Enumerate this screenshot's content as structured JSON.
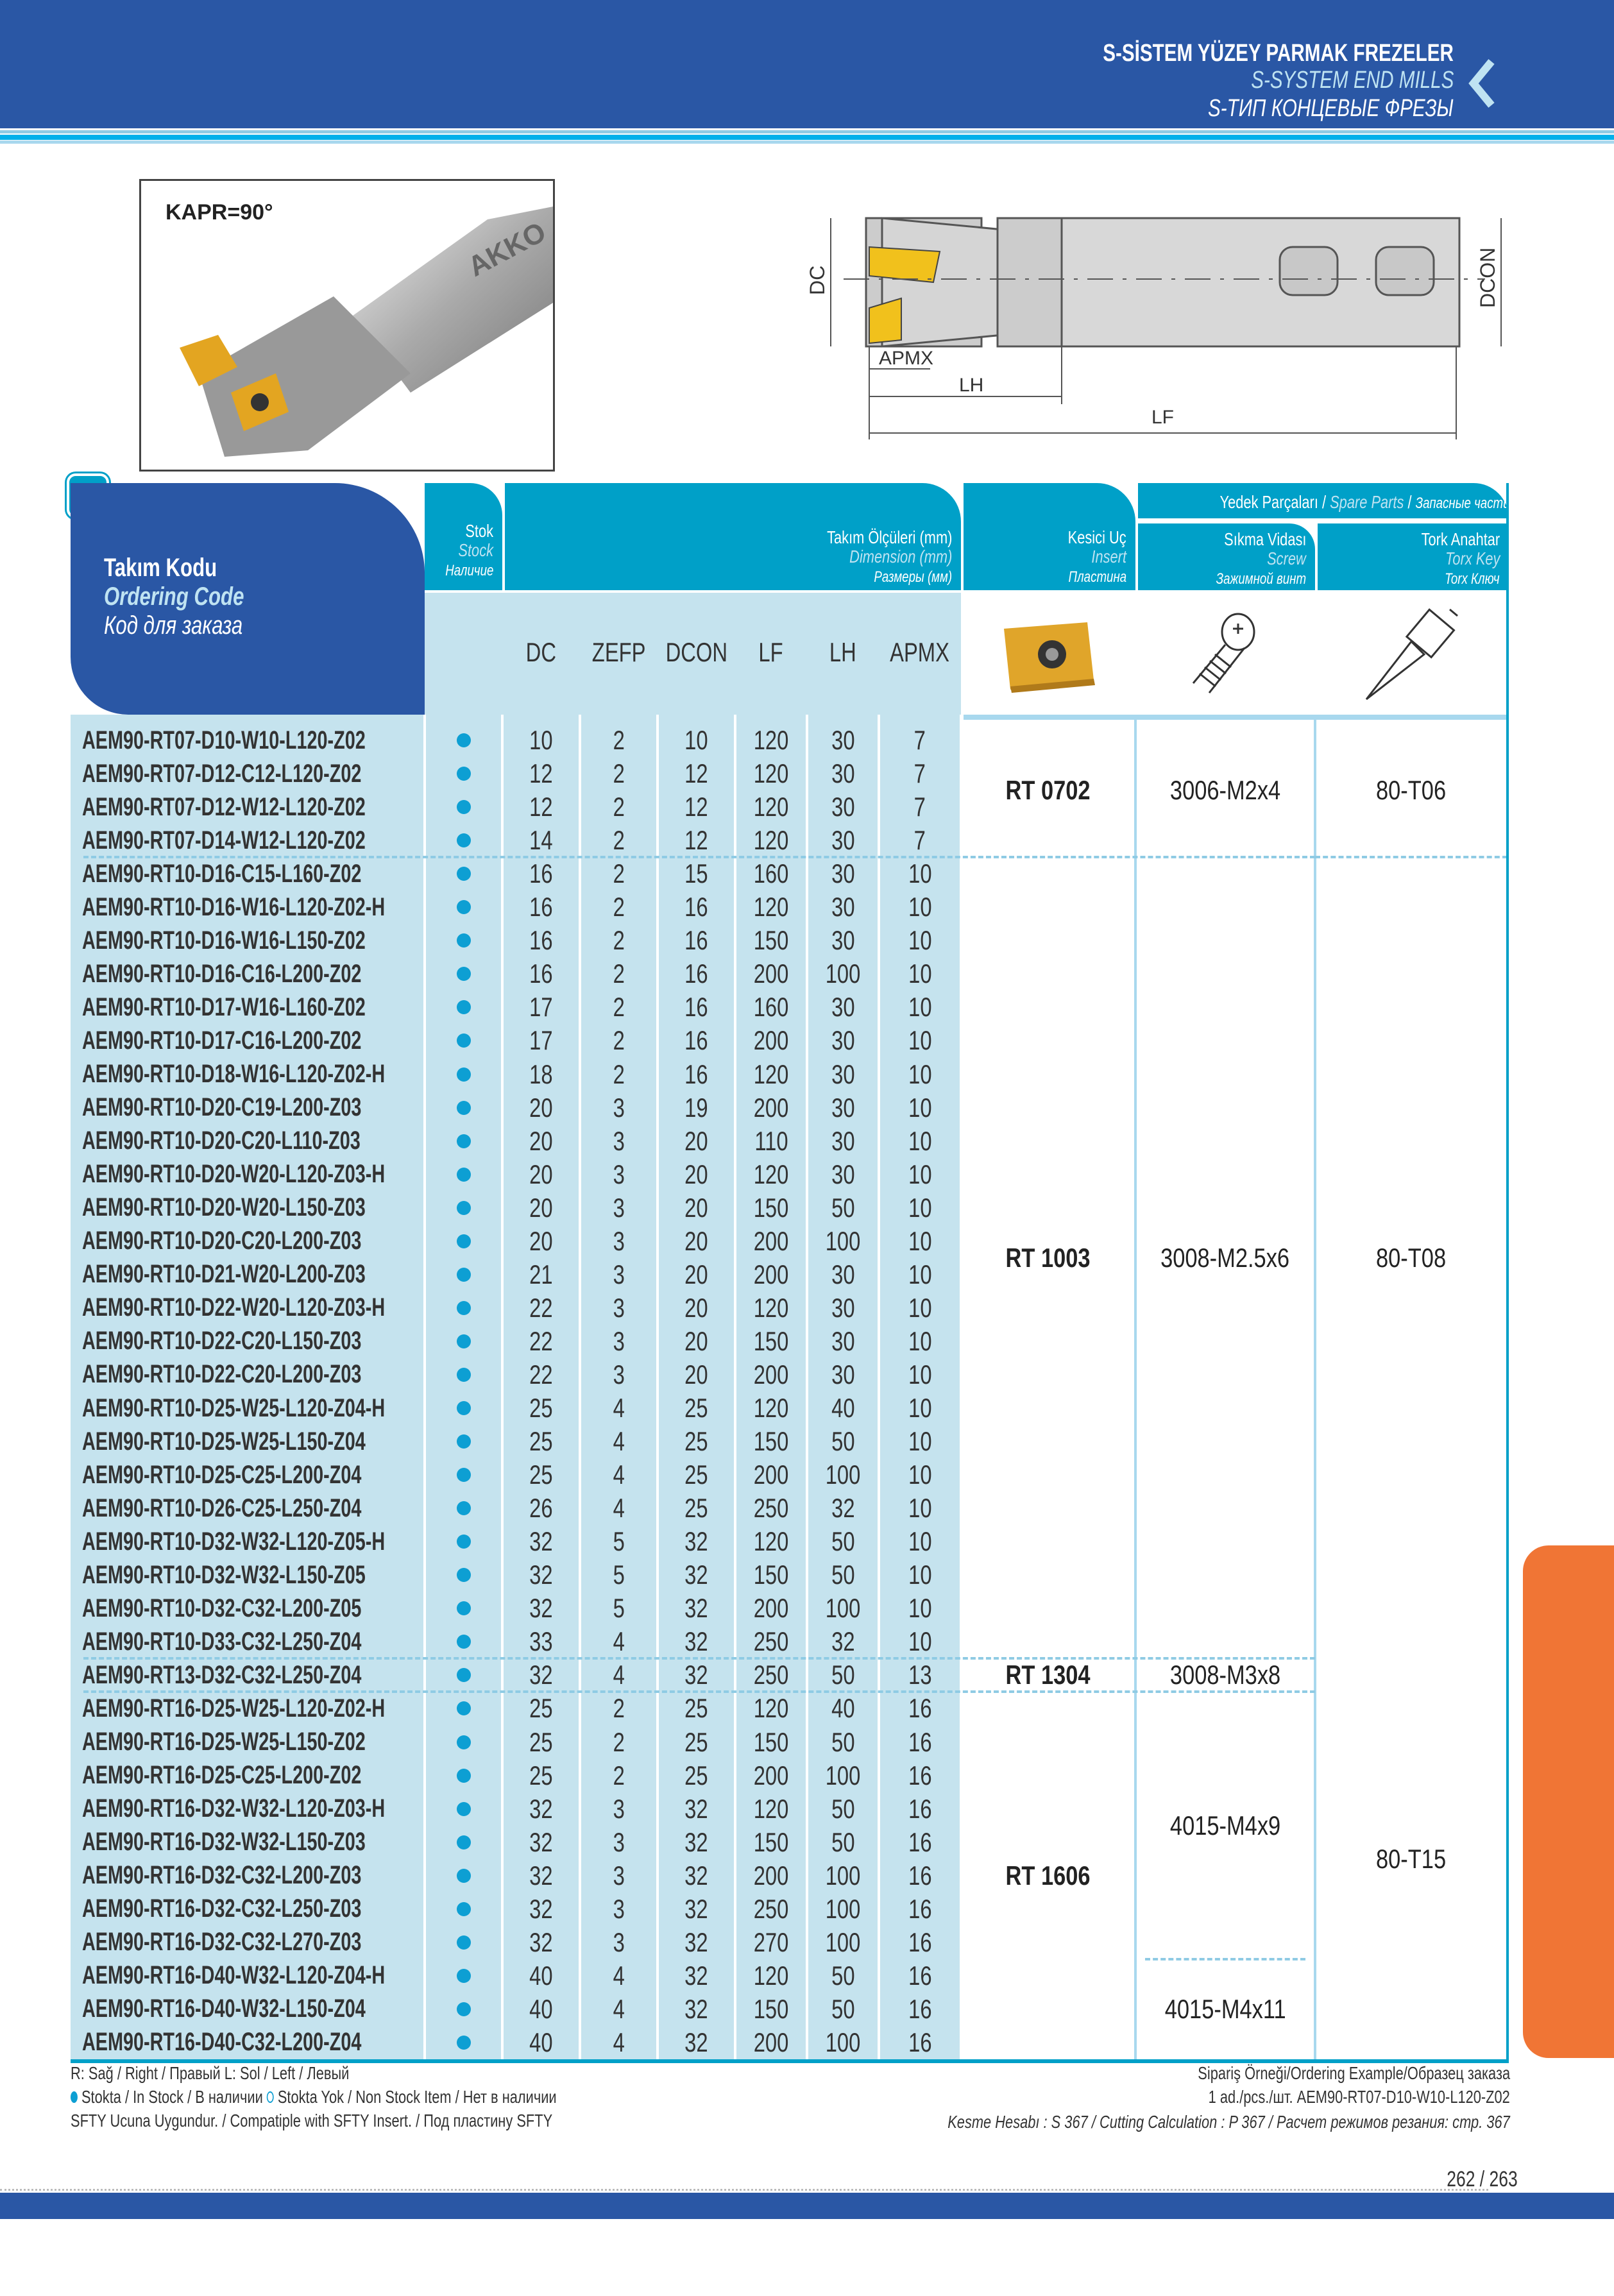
{
  "header": {
    "title_tr": "S-SİSTEM YÜZEY PARMAK FREZELER",
    "title_en": "S-SYSTEM END MILLS",
    "title_ru": "S-ТИП КОНЦЕВЫЕ ФРЕЗЫ",
    "chevron_icon": "chevron-left-icon"
  },
  "product": {
    "kapr_label": "KAPR=90°",
    "logo_text": "AKKO"
  },
  "diagram": {
    "labels": {
      "dc": "DC",
      "dcon": "DCON",
      "apmx": "APMX",
      "lh": "LH",
      "lf": "LF"
    }
  },
  "table": {
    "ordering_code": {
      "tr": "Takım Kodu",
      "en": "Ordering Code",
      "ru": "Код для заказа"
    },
    "stock": {
      "tr": "Stok",
      "en": "Stock",
      "ru": "Наличие"
    },
    "dimensions": {
      "tr": "Takım Ölçüleri (mm)",
      "en": "Dimension (mm)",
      "ru": "Размеры (мм)"
    },
    "insert": {
      "tr": "Kesici Uç",
      "en": "Insert",
      "ru": "Пластина"
    },
    "spare_parts": {
      "tr": "Yedek Parçaları",
      "en": "Spare Parts",
      "ru": "Запасные части"
    },
    "screw": {
      "tr": "Sıkma Vidası",
      "en": "Screw",
      "ru": "Зажимной винт"
    },
    "key": {
      "tr": "Tork Anahtar",
      "en": "Torx Key",
      "ru": "Torx Ключ"
    },
    "columns": [
      "DC",
      "ZEFP",
      "DCON",
      "LF",
      "LH",
      "APMX"
    ],
    "rows": [
      [
        "AEM90-RT07-D10-W10-L120-Z02",
        10,
        2,
        10,
        120,
        30,
        7
      ],
      [
        "AEM90-RT07-D12-C12-L120-Z02",
        12,
        2,
        12,
        120,
        30,
        7
      ],
      [
        "AEM90-RT07-D12-W12-L120-Z02",
        12,
        2,
        12,
        120,
        30,
        7
      ],
      [
        "AEM90-RT07-D14-W12-L120-Z02",
        14,
        2,
        12,
        120,
        30,
        7
      ],
      [
        "AEM90-RT10-D16-C15-L160-Z02",
        16,
        2,
        15,
        160,
        30,
        10
      ],
      [
        "AEM90-RT10-D16-W16-L120-Z02-H",
        16,
        2,
        16,
        120,
        30,
        10
      ],
      [
        "AEM90-RT10-D16-W16-L150-Z02",
        16,
        2,
        16,
        150,
        30,
        10
      ],
      [
        "AEM90-RT10-D16-C16-L200-Z02",
        16,
        2,
        16,
        200,
        100,
        10
      ],
      [
        "AEM90-RT10-D17-W16-L160-Z02",
        17,
        2,
        16,
        160,
        30,
        10
      ],
      [
        "AEM90-RT10-D17-C16-L200-Z02",
        17,
        2,
        16,
        200,
        30,
        10
      ],
      [
        "AEM90-RT10-D18-W16-L120-Z02-H",
        18,
        2,
        16,
        120,
        30,
        10
      ],
      [
        "AEM90-RT10-D20-C19-L200-Z03",
        20,
        3,
        19,
        200,
        30,
        10
      ],
      [
        "AEM90-RT10-D20-C20-L110-Z03",
        20,
        3,
        20,
        110,
        30,
        10
      ],
      [
        "AEM90-RT10-D20-W20-L120-Z03-H",
        20,
        3,
        20,
        120,
        30,
        10
      ],
      [
        "AEM90-RT10-D20-W20-L150-Z03",
        20,
        3,
        20,
        150,
        50,
        10
      ],
      [
        "AEM90-RT10-D20-C20-L200-Z03",
        20,
        3,
        20,
        200,
        100,
        10
      ],
      [
        "AEM90-RT10-D21-W20-L200-Z03",
        21,
        3,
        20,
        200,
        30,
        10
      ],
      [
        "AEM90-RT10-D22-W20-L120-Z03-H",
        22,
        3,
        20,
        120,
        30,
        10
      ],
      [
        "AEM90-RT10-D22-C20-L150-Z03",
        22,
        3,
        20,
        150,
        30,
        10
      ],
      [
        "AEM90-RT10-D22-C20-L200-Z03",
        22,
        3,
        20,
        200,
        30,
        10
      ],
      [
        "AEM90-RT10-D25-W25-L120-Z04-H",
        25,
        4,
        25,
        120,
        40,
        10
      ],
      [
        "AEM90-RT10-D25-W25-L150-Z04",
        25,
        4,
        25,
        150,
        50,
        10
      ],
      [
        "AEM90-RT10-D25-C25-L200-Z04",
        25,
        4,
        25,
        200,
        100,
        10
      ],
      [
        "AEM90-RT10-D26-C25-L250-Z04",
        26,
        4,
        25,
        250,
        32,
        10
      ],
      [
        "AEM90-RT10-D32-W32-L120-Z05-H",
        32,
        5,
        32,
        120,
        50,
        10
      ],
      [
        "AEM90-RT10-D32-W32-L150-Z05",
        32,
        5,
        32,
        150,
        50,
        10
      ],
      [
        "AEM90-RT10-D32-C32-L200-Z05",
        32,
        5,
        32,
        200,
        100,
        10
      ],
      [
        "AEM90-RT10-D33-C32-L250-Z04",
        33,
        4,
        32,
        250,
        32,
        10
      ],
      [
        "AEM90-RT13-D32-C32-L250-Z04",
        32,
        4,
        32,
        250,
        50,
        13
      ],
      [
        "AEM90-RT16-D25-W25-L120-Z02-H",
        25,
        2,
        25,
        120,
        40,
        16
      ],
      [
        "AEM90-RT16-D25-W25-L150-Z02",
        25,
        2,
        25,
        150,
        50,
        16
      ],
      [
        "AEM90-RT16-D25-C25-L200-Z02",
        25,
        2,
        25,
        200,
        100,
        16
      ],
      [
        "AEM90-RT16-D32-W32-L120-Z03-H",
        32,
        3,
        32,
        120,
        50,
        16
      ],
      [
        "AEM90-RT16-D32-W32-L150-Z03",
        32,
        3,
        32,
        150,
        50,
        16
      ],
      [
        "AEM90-RT16-D32-C32-L200-Z03",
        32,
        3,
        32,
        200,
        100,
        16
      ],
      [
        "AEM90-RT16-D32-C32-L250-Z03",
        32,
        3,
        32,
        250,
        100,
        16
      ],
      [
        "AEM90-RT16-D32-C32-L270-Z03",
        32,
        3,
        32,
        270,
        100,
        16
      ],
      [
        "AEM90-RT16-D40-W32-L120-Z04-H",
        40,
        4,
        32,
        120,
        50,
        16
      ],
      [
        "AEM90-RT16-D40-W32-L150-Z04",
        40,
        4,
        32,
        150,
        50,
        16
      ],
      [
        "AEM90-RT16-D40-C32-L200-Z04",
        40,
        4,
        32,
        200,
        100,
        16
      ]
    ],
    "stock_status": "in-stock",
    "inserts": [
      {
        "label": "RT 0702",
        "rows": [
          0,
          3
        ]
      },
      {
        "label": "RT 1003",
        "rows": [
          4,
          27
        ]
      },
      {
        "label": "RT 1304",
        "rows": [
          28,
          28
        ]
      },
      {
        "label": "RT 1606",
        "rows": [
          29,
          39
        ]
      }
    ],
    "screws": [
      {
        "label": "3006-M2x4",
        "rows": [
          0,
          3
        ]
      },
      {
        "label": "3008-M2.5x6",
        "rows": [
          4,
          27
        ]
      },
      {
        "label": "3008-M3x8",
        "rows": [
          28,
          28
        ]
      },
      {
        "label": "4015-M4x9",
        "rows": [
          29,
          36
        ]
      },
      {
        "label": "4015-M4x11",
        "rows": [
          37,
          39
        ]
      }
    ],
    "keys": [
      {
        "label": "80-T06",
        "rows": [
          0,
          3
        ]
      },
      {
        "label": "80-T08",
        "rows": [
          4,
          27
        ]
      },
      {
        "label": "80-T15",
        "rows": [
          28,
          39
        ]
      }
    ]
  },
  "colors": {
    "header_blue": "#2a57a5",
    "teal": "#00a0c8",
    "light_blue": "#c5e3ee",
    "stock_dot": "#0d9fd3",
    "orange_tab": "#f07535"
  },
  "footer": {
    "legend_rl": "R: Sağ / Right / Правый  L: Sol / Left / Левый",
    "legend_stock_in": "Stokta / In Stock / В наличии",
    "legend_stock_out": "Stokta Yok / Non Stock Item / Нет в наличии",
    "legend_sfty": "SFTY Ucuna Uygundur. / Compatiple with SFTY Insert. / Под пластину SFTY",
    "ordering_example_label": "Sipariş Örneği/Ordering Example/Образец заказа",
    "ordering_example_value": "1 ad./pcs./шт.  AEM90-RT07-D10-W10-L120-Z02",
    "cutting_calc": "Kesme Hesabı : S 367 / Cutting Calculation : P 367 / Расчет режимов резания: стр. 367",
    "page_numbers": "262 / 263"
  }
}
